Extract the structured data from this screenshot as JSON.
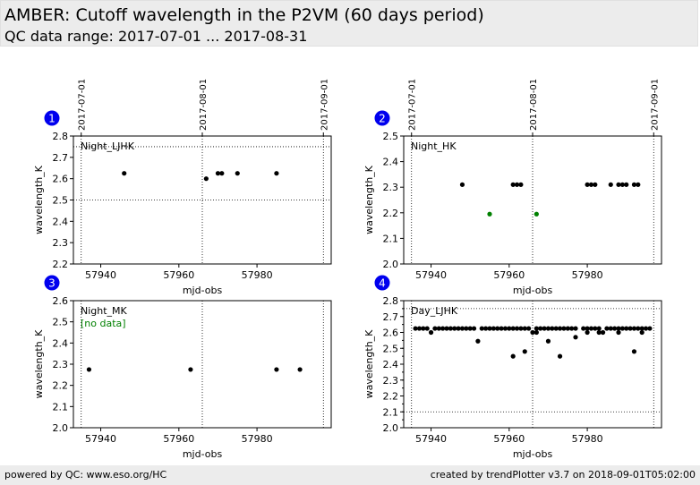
{
  "header": {
    "title": "AMBER: Cutoff wavelength in the P2VM (60 days period)",
    "subtitle": "QC data range: 2017-07-01 ... 2017-08-31"
  },
  "footer": {
    "left": "powered by QC: www.eso.org/HC",
    "right": "created by trendPlotter v3.7 on 2018-09-01T05:02:00"
  },
  "chart_data": [
    {
      "type": "scatter",
      "badge": "1",
      "panel_label": "Night_LJHK",
      "no_data_label": "",
      "xlabel": "mjd-obs",
      "ylabel": "wavelength_K",
      "xlim": [
        57933,
        57999
      ],
      "ylim": [
        2.2,
        2.8
      ],
      "xticks": [
        57940,
        57960,
        57980
      ],
      "yticks": [
        2.2,
        2.3,
        2.4,
        2.5,
        2.6,
        2.7,
        2.8
      ],
      "y_minor_step": null,
      "hlines": [
        2.75,
        2.5
      ],
      "date_ticks": [
        {
          "label": "2017-07-01",
          "x": 57935
        },
        {
          "label": "2017-08-01",
          "x": 57966
        },
        {
          "label": "2017-09-01",
          "x": 57997
        }
      ],
      "series": [
        {
          "color": "#000000",
          "points": [
            [
              57946,
              2.625
            ],
            [
              57967,
              2.6
            ],
            [
              57970,
              2.625
            ],
            [
              57971,
              2.625
            ],
            [
              57975,
              2.625
            ],
            [
              57985,
              2.625
            ]
          ]
        }
      ]
    },
    {
      "type": "scatter",
      "badge": "2",
      "panel_label": "Night_HK",
      "no_data_label": "",
      "xlabel": "mjd-obs",
      "ylabel": "wavelength_K",
      "xlim": [
        57933,
        57999
      ],
      "ylim": [
        2.0,
        2.5
      ],
      "xticks": [
        57940,
        57960,
        57980
      ],
      "yticks": [
        2.0,
        2.1,
        2.2,
        2.3,
        2.4,
        2.5
      ],
      "y_minor_step": null,
      "hlines": [],
      "date_ticks": [
        {
          "label": "2017-07-01",
          "x": 57935
        },
        {
          "label": "2017-08-01",
          "x": 57966
        },
        {
          "label": "2017-09-01",
          "x": 57997
        }
      ],
      "series": [
        {
          "color": "#000000",
          "points": [
            [
              57948,
              2.31
            ],
            [
              57961,
              2.31
            ],
            [
              57962,
              2.31
            ],
            [
              57963,
              2.31
            ],
            [
              57980,
              2.31
            ],
            [
              57981,
              2.31
            ],
            [
              57982,
              2.31
            ],
            [
              57986,
              2.31
            ],
            [
              57988,
              2.31
            ],
            [
              57989,
              2.31
            ],
            [
              57990,
              2.31
            ],
            [
              57992,
              2.31
            ],
            [
              57993,
              2.31
            ]
          ]
        },
        {
          "color": "#008000",
          "points": [
            [
              57955,
              2.195
            ],
            [
              57967,
              2.195
            ]
          ]
        }
      ]
    },
    {
      "type": "scatter",
      "badge": "3",
      "panel_label": "Night_MK",
      "no_data_label": "[no data]",
      "xlabel": "mjd-obs",
      "ylabel": "wavelength_K",
      "xlim": [
        57933,
        57999
      ],
      "ylim": [
        2.0,
        2.6
      ],
      "xticks": [
        57940,
        57960,
        57980
      ],
      "yticks": [
        2.0,
        2.1,
        2.2,
        2.3,
        2.4,
        2.5,
        2.6
      ],
      "y_minor_step": null,
      "hlines": [],
      "date_ticks": [
        {
          "label": "",
          "x": 57935
        },
        {
          "label": "",
          "x": 57966
        },
        {
          "label": "",
          "x": 57997
        }
      ],
      "series": [
        {
          "color": "#000000",
          "points": [
            [
              57937,
              2.275
            ],
            [
              57963,
              2.275
            ],
            [
              57985,
              2.275
            ],
            [
              57991,
              2.275
            ]
          ]
        }
      ]
    },
    {
      "type": "scatter",
      "badge": "4",
      "panel_label": "Day_LJHK",
      "no_data_label": "",
      "xlabel": "mjd-obs",
      "ylabel": "wavelength_K",
      "xlim": [
        57933,
        57999
      ],
      "ylim": [
        2.0,
        2.8
      ],
      "xticks": [
        57940,
        57960,
        57980
      ],
      "yticks": [
        2.0,
        2.1,
        2.2,
        2.3,
        2.4,
        2.5,
        2.6,
        2.7,
        2.8
      ],
      "y_minor_step": 0.05,
      "hlines": [
        2.75,
        2.1
      ],
      "date_ticks": [
        {
          "label": "",
          "x": 57935
        },
        {
          "label": "",
          "x": 57966
        },
        {
          "label": "",
          "x": 57997
        }
      ],
      "series": [
        {
          "color": "#000000",
          "points": [
            [
              57936,
              2.625
            ],
            [
              57937,
              2.625
            ],
            [
              57938,
              2.625
            ],
            [
              57939,
              2.625
            ],
            [
              57940,
              2.6
            ],
            [
              57941,
              2.625
            ],
            [
              57942,
              2.625
            ],
            [
              57943,
              2.625
            ],
            [
              57944,
              2.625
            ],
            [
              57945,
              2.625
            ],
            [
              57946,
              2.625
            ],
            [
              57947,
              2.625
            ],
            [
              57948,
              2.625
            ],
            [
              57949,
              2.625
            ],
            [
              57950,
              2.625
            ],
            [
              57951,
              2.625
            ],
            [
              57952,
              2.545
            ],
            [
              57953,
              2.625
            ],
            [
              57954,
              2.625
            ],
            [
              57955,
              2.625
            ],
            [
              57956,
              2.625
            ],
            [
              57957,
              2.625
            ],
            [
              57958,
              2.625
            ],
            [
              57959,
              2.625
            ],
            [
              57960,
              2.625
            ],
            [
              57961,
              2.45
            ],
            [
              57961,
              2.625
            ],
            [
              57962,
              2.625
            ],
            [
              57963,
              2.625
            ],
            [
              57964,
              2.48
            ],
            [
              57964,
              2.625
            ],
            [
              57965,
              2.625
            ],
            [
              57966,
              2.6
            ],
            [
              57967,
              2.6
            ],
            [
              57967,
              2.625
            ],
            [
              57968,
              2.625
            ],
            [
              57969,
              2.625
            ],
            [
              57970,
              2.545
            ],
            [
              57970,
              2.625
            ],
            [
              57971,
              2.625
            ],
            [
              57972,
              2.625
            ],
            [
              57973,
              2.45
            ],
            [
              57973,
              2.625
            ],
            [
              57974,
              2.625
            ],
            [
              57975,
              2.625
            ],
            [
              57976,
              2.625
            ],
            [
              57977,
              2.57
            ],
            [
              57977,
              2.625
            ],
            [
              57979,
              2.625
            ],
            [
              57980,
              2.6
            ],
            [
              57980,
              2.625
            ],
            [
              57981,
              2.625
            ],
            [
              57982,
              2.625
            ],
            [
              57983,
              2.6
            ],
            [
              57983,
              2.625
            ],
            [
              57984,
              2.6
            ],
            [
              57985,
              2.625
            ],
            [
              57986,
              2.625
            ],
            [
              57987,
              2.625
            ],
            [
              57988,
              2.6
            ],
            [
              57988,
              2.625
            ],
            [
              57989,
              2.625
            ],
            [
              57990,
              2.625
            ],
            [
              57991,
              2.625
            ],
            [
              57992,
              2.48
            ],
            [
              57992,
              2.625
            ],
            [
              57993,
              2.625
            ],
            [
              57994,
              2.6
            ],
            [
              57994,
              2.625
            ],
            [
              57995,
              2.625
            ],
            [
              57996,
              2.625
            ]
          ]
        }
      ]
    }
  ]
}
